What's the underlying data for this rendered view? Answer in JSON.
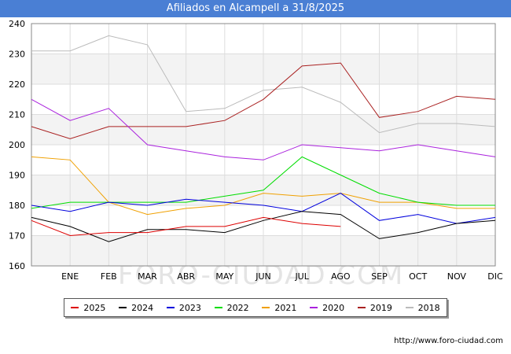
{
  "title": "Afiliados en Alcampell a 31/8/2025",
  "source": "http://www.foro-ciudad.com",
  "watermark": "FORO-CIUDAD.COM",
  "chart_data": {
    "type": "line",
    "categories": [
      "",
      "ENE",
      "FEB",
      "MAR",
      "ABR",
      "MAY",
      "JUN",
      "JUL",
      "AGO",
      "SEP",
      "OCT",
      "NOV",
      "DIC"
    ],
    "ylim": [
      160,
      240
    ],
    "yticks": [
      160,
      170,
      180,
      190,
      200,
      210,
      220,
      230,
      240
    ],
    "grid": true,
    "legend_position": "bottom",
    "series": [
      {
        "name": "2025",
        "color": "#dd0000",
        "values": [
          175,
          170,
          171,
          171,
          173,
          173,
          176,
          174,
          173,
          null,
          null,
          null,
          null
        ]
      },
      {
        "name": "2024",
        "color": "#000000",
        "values": [
          176,
          173,
          168,
          172,
          172,
          171,
          175,
          178,
          177,
          169,
          171,
          174,
          175
        ]
      },
      {
        "name": "2023",
        "color": "#0000dd",
        "values": [
          180,
          178,
          181,
          180,
          182,
          181,
          180,
          178,
          184,
          175,
          177,
          174,
          176
        ]
      },
      {
        "name": "2022",
        "color": "#00dd00",
        "values": [
          179,
          181,
          181,
          181,
          181,
          183,
          185,
          196,
          190,
          184,
          181,
          180,
          180
        ]
      },
      {
        "name": "2021",
        "color": "#f0a000",
        "values": [
          196,
          195,
          181,
          177,
          179,
          180,
          184,
          183,
          184,
          181,
          181,
          179,
          179
        ]
      },
      {
        "name": "2020",
        "color": "#aa22dd",
        "values": [
          215,
          208,
          212,
          200,
          198,
          196,
          195,
          200,
          199,
          198,
          200,
          198,
          196
        ]
      },
      {
        "name": "2019",
        "color": "#aa2222",
        "values": [
          206,
          202,
          206,
          206,
          206,
          208,
          215,
          226,
          227,
          209,
          211,
          216,
          215
        ]
      },
      {
        "name": "2018",
        "color": "#bbbbbb",
        "values": [
          231,
          231,
          236,
          233,
          211,
          212,
          218,
          219,
          214,
          204,
          207,
          207,
          206
        ]
      }
    ]
  }
}
